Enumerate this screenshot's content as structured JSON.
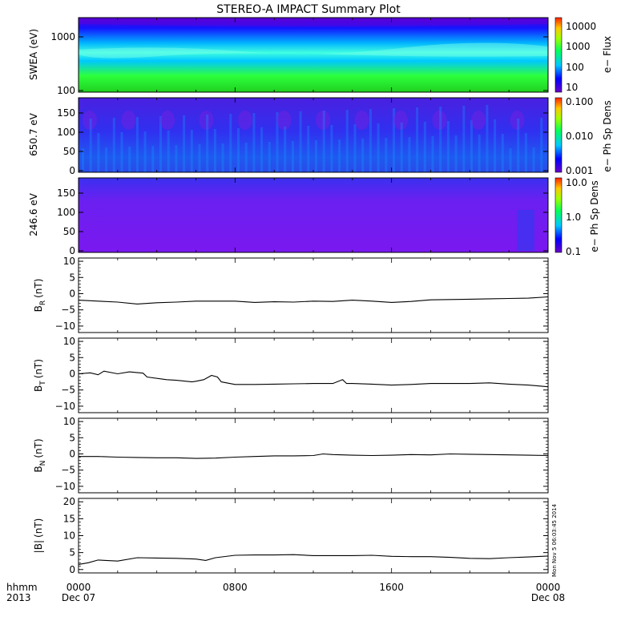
{
  "title": "STEREO-A IMPACT Summary Plot",
  "stamp": "Mon Nov  5 06:03:45 2014",
  "time_axis": {
    "row_labels": [
      "hhmm",
      "2013"
    ],
    "ticks": [
      {
        "t": 0,
        "label": "0000",
        "sub": "Dec 07"
      },
      {
        "t": 8,
        "label": "0800",
        "sub": ""
      },
      {
        "t": 16,
        "label": "1600",
        "sub": ""
      },
      {
        "t": 24,
        "label": "0000",
        "sub": "Dec 08"
      }
    ],
    "range_hours": [
      0,
      24
    ]
  },
  "colors": {
    "trace": "#000000",
    "frame": "#000000"
  },
  "spectrograms": [
    {
      "id": "swea",
      "ylabel": "SWEA (eV)",
      "yscale": "log",
      "ylim": [
        100,
        2000
      ],
      "yticks": [
        {
          "v": 100,
          "label": "100"
        },
        {
          "v": 1000,
          "label": "1000"
        }
      ],
      "colorbar": {
        "label": "e− Flux",
        "scale": "log",
        "range": [
          5,
          20000
        ],
        "ticks": [
          {
            "v": 10000,
            "label": "10000"
          },
          {
            "v": 1000,
            "label": "1000"
          },
          {
            "v": 100,
            "label": "100"
          },
          {
            "v": 10,
            "label": "10"
          }
        ]
      },
      "bands": [
        {
          "level": 0.0,
          "hex": "#5a00d2"
        },
        {
          "level": 0.15,
          "hex": "#1414ff"
        },
        {
          "level": 0.38,
          "hex": "#00c8ff"
        },
        {
          "level": 0.55,
          "hex": "#40ffd0"
        },
        {
          "level": 0.75,
          "hex": "#2dff3c"
        },
        {
          "level": 1.0,
          "hex": "#1ec81e"
        }
      ]
    },
    {
      "id": "pad650",
      "ylabel": "650.7 eV",
      "yscale": "linear",
      "ylim": [
        0,
        180
      ],
      "yticks": [
        {
          "v": 0,
          "label": "0"
        },
        {
          "v": 50,
          "label": "50"
        },
        {
          "v": 100,
          "label": "100"
        },
        {
          "v": 150,
          "label": "150"
        }
      ],
      "colorbar": {
        "label": "e− Ph Sp Dens",
        "scale": "log",
        "range": [
          0.001,
          0.1
        ],
        "ticks": [
          {
            "v": 0.1,
            "label": "0.100"
          },
          {
            "v": 0.01,
            "label": "0.010"
          },
          {
            "v": 0.001,
            "label": "0.001"
          }
        ]
      },
      "dominant": "#3c28e6"
    },
    {
      "id": "pad246",
      "ylabel": "246.6 eV",
      "yscale": "linear",
      "ylim": [
        0,
        180
      ],
      "yticks": [
        {
          "v": 0,
          "label": "0"
        },
        {
          "v": 50,
          "label": "50"
        },
        {
          "v": 100,
          "label": "100"
        },
        {
          "v": 150,
          "label": "150"
        }
      ],
      "colorbar": {
        "label": "e− Ph Sp Dens",
        "scale": "log",
        "range": [
          0.1,
          10
        ],
        "ticks": [
          {
            "v": 10,
            "label": "10.0"
          },
          {
            "v": 1,
            "label": "1.0"
          },
          {
            "v": 0.1,
            "label": "0.1"
          }
        ]
      },
      "dominant": "#7a18f0"
    }
  ],
  "chart_data": {
    "type": "line",
    "title": "STEREO-A IMPACT Summary Plot",
    "x_unit": "hours since 2013-12-07 00:00",
    "panels": [
      {
        "name": "BR",
        "ylabel_base": "B",
        "ylabel_sub": "R",
        "ylabel_unit": "(nT)",
        "ylim": [
          -12,
          11
        ],
        "yticks": [
          -10,
          -5,
          0,
          5,
          10
        ],
        "x": [
          0,
          1,
          2,
          3,
          4,
          5,
          6,
          7,
          8,
          9,
          10,
          11,
          12,
          13,
          14,
          15,
          16,
          17,
          18,
          19,
          20,
          21,
          22,
          23,
          24
        ],
        "y": [
          -2.0,
          -2.3,
          -2.6,
          -3.2,
          -2.8,
          -2.6,
          -2.3,
          -2.3,
          -2.3,
          -2.7,
          -2.5,
          -2.6,
          -2.3,
          -2.4,
          -2.0,
          -2.3,
          -2.7,
          -2.4,
          -1.9,
          -1.8,
          -1.7,
          -1.6,
          -1.5,
          -1.4,
          -1.0
        ]
      },
      {
        "name": "BT",
        "ylabel_base": "B",
        "ylabel_sub": "T",
        "ylabel_unit": "(nT)",
        "ylim": [
          -12,
          11
        ],
        "yticks": [
          -10,
          -5,
          0,
          5,
          10
        ],
        "x": [
          0,
          0.6,
          1,
          1.3,
          2,
          2.6,
          3.3,
          3.5,
          4.5,
          5,
          5.8,
          6,
          6.4,
          6.8,
          7.1,
          7.3,
          8,
          9,
          10,
          11,
          12,
          13,
          13.5,
          13.7,
          14,
          15,
          16,
          17,
          18,
          19,
          20,
          21,
          22,
          23,
          24
        ],
        "y": [
          0.0,
          0.3,
          -0.3,
          0.8,
          0.0,
          0.6,
          0.2,
          -1.0,
          -1.8,
          -2.0,
          -2.5,
          -2.3,
          -1.8,
          -0.5,
          -1.0,
          -2.5,
          -3.3,
          -3.3,
          -3.2,
          -3.1,
          -3.0,
          -3.0,
          -1.8,
          -3.0,
          -3.0,
          -3.2,
          -3.5,
          -3.3,
          -3.0,
          -3.0,
          -3.0,
          -2.8,
          -3.2,
          -3.5,
          -4.0
        ]
      },
      {
        "name": "BN",
        "ylabel_base": "B",
        "ylabel_sub": "N",
        "ylabel_unit": "(nT)",
        "ylim": [
          -12,
          11
        ],
        "yticks": [
          -10,
          -5,
          0,
          5,
          10
        ],
        "x": [
          0,
          1,
          2,
          3,
          4,
          5,
          6,
          7,
          8,
          9,
          10,
          11,
          12,
          12.5,
          13,
          14,
          15,
          16,
          17,
          18,
          19,
          20,
          21,
          22,
          23,
          24
        ],
        "y": [
          -0.8,
          -0.8,
          -1.0,
          -1.1,
          -1.2,
          -1.2,
          -1.4,
          -1.3,
          -1.0,
          -0.8,
          -0.6,
          -0.6,
          -0.5,
          0.0,
          -0.2,
          -0.4,
          -0.5,
          -0.4,
          -0.2,
          -0.3,
          0.0,
          -0.1,
          -0.2,
          -0.3,
          -0.4,
          -0.5
        ]
      },
      {
        "name": "|B|",
        "ylabel_base": "|B|",
        "ylabel_sub": "",
        "ylabel_unit": "(nT)",
        "ylim": [
          -1,
          21
        ],
        "yticks": [
          0,
          5,
          10,
          15,
          20
        ],
        "x": [
          0,
          0.5,
          1,
          2,
          3,
          4,
          5,
          6,
          6.5,
          7,
          8,
          9,
          10,
          11,
          12,
          13,
          14,
          15,
          16,
          17,
          18,
          19,
          20,
          21,
          22,
          23,
          24
        ],
        "y": [
          1.5,
          2.0,
          2.8,
          2.5,
          3.5,
          3.4,
          3.3,
          3.1,
          2.7,
          3.5,
          4.2,
          4.3,
          4.3,
          4.4,
          4.1,
          4.1,
          4.1,
          4.2,
          3.9,
          3.8,
          3.8,
          3.6,
          3.3,
          3.2,
          3.5,
          3.7,
          4.0
        ]
      }
    ]
  }
}
